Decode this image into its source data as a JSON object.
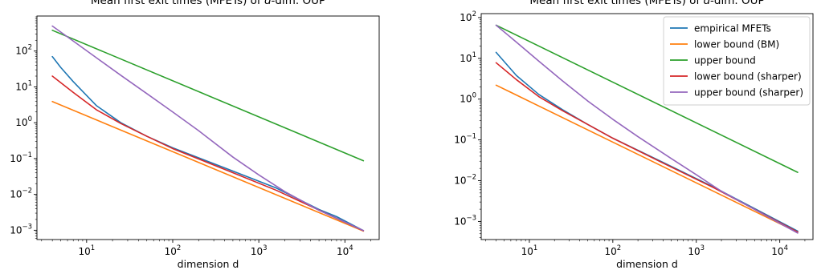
{
  "chart_data": [
    {
      "type": "line",
      "title_pre": "Mean first exit times (MFETs) of ",
      "title_italic": "d",
      "title_post": "-dim. OUP",
      "xlabel": "dimension d",
      "ylabel": "",
      "xscale": "log",
      "yscale": "log",
      "xlim": [
        2.65,
        25000
      ],
      "ylim": [
        0.00055,
        950
      ],
      "xticks": [
        {
          "value": 10,
          "base": "10",
          "exp": "1"
        },
        {
          "value": 100,
          "base": "10",
          "exp": "2"
        },
        {
          "value": 1000,
          "base": "10",
          "exp": "3"
        },
        {
          "value": 10000,
          "base": "10",
          "exp": "4"
        }
      ],
      "yticks": [
        {
          "value": 0.001,
          "base": "10",
          "exp": "−3"
        },
        {
          "value": 0.01,
          "base": "10",
          "exp": "−2"
        },
        {
          "value": 0.1,
          "base": "10",
          "exp": "−1"
        },
        {
          "value": 1,
          "base": "10",
          "exp": "0"
        },
        {
          "value": 10,
          "base": "10",
          "exp": "1"
        },
        {
          "value": 100,
          "base": "10",
          "exp": "2"
        }
      ],
      "grid": false,
      "legend": false,
      "series": [
        {
          "color": "#1f77b4",
          "x": [
            4,
            5,
            7,
            13,
            25,
            50,
            100,
            400,
            1600,
            5000,
            8000,
            16384
          ],
          "y": [
            70,
            35,
            14,
            3,
            1.0,
            0.42,
            0.2,
            0.055,
            0.015,
            0.0038,
            0.0024,
            0.00098
          ]
        },
        {
          "color": "#ff7f0e",
          "x": [
            4,
            16384
          ],
          "y": [
            3.9,
            0.00095
          ]
        },
        {
          "color": "#2ca02c",
          "x": [
            4,
            16384
          ],
          "y": [
            380,
            0.087
          ]
        },
        {
          "color": "#d62728",
          "x": [
            4,
            7,
            13,
            25,
            50,
            100,
            400,
            1600,
            16384
          ],
          "y": [
            20,
            7,
            2.3,
            0.95,
            0.42,
            0.19,
            0.05,
            0.013,
            0.00097
          ]
        },
        {
          "color": "#9467bd",
          "x": [
            4,
            7,
            13,
            25,
            50,
            100,
            200,
            500,
            1000,
            2000,
            5000,
            16384
          ],
          "y": [
            500,
            190,
            65,
            21,
            6.5,
            2.0,
            0.6,
            0.11,
            0.035,
            0.012,
            0.0036,
            0.00098
          ]
        }
      ]
    },
    {
      "type": "line",
      "title_pre": "Mean first exit times (MFETs) of ",
      "title_italic": "d",
      "title_post": "-dim. OUP",
      "xlabel": "dimension d",
      "ylabel": "",
      "xscale": "log",
      "yscale": "log",
      "xlim": [
        2.65,
        25000
      ],
      "ylim": [
        0.00036,
        125
      ],
      "xticks": [
        {
          "value": 10,
          "base": "10",
          "exp": "1"
        },
        {
          "value": 100,
          "base": "10",
          "exp": "2"
        },
        {
          "value": 1000,
          "base": "10",
          "exp": "3"
        },
        {
          "value": 10000,
          "base": "10",
          "exp": "4"
        }
      ],
      "yticks": [
        {
          "value": 0.001,
          "base": "10",
          "exp": "−3"
        },
        {
          "value": 0.01,
          "base": "10",
          "exp": "−2"
        },
        {
          "value": 0.1,
          "base": "10",
          "exp": "−1"
        },
        {
          "value": 1,
          "base": "10",
          "exp": "0"
        },
        {
          "value": 10,
          "base": "10",
          "exp": "1"
        },
        {
          "value": 100,
          "base": "10",
          "exp": "2"
        }
      ],
      "grid": false,
      "legend": true,
      "legend_loc": "upper right",
      "series": [
        {
          "name": "empirical MFETs",
          "color": "#1f77b4",
          "x": [
            4,
            7,
            13,
            25,
            50,
            100,
            400,
            1600,
            16384
          ],
          "y": [
            14,
            3.8,
            1.3,
            0.55,
            0.24,
            0.11,
            0.028,
            0.007,
            0.00058
          ]
        },
        {
          "name": "lower bound (BM)",
          "color": "#ff7f0e",
          "x": [
            4,
            16384
          ],
          "y": [
            2.2,
            0.00054
          ]
        },
        {
          "name": "upper bound",
          "color": "#2ca02c",
          "x": [
            4,
            16384
          ],
          "y": [
            65,
            0.016
          ]
        },
        {
          "name": "lower bound (sharper)",
          "color": "#d62728",
          "x": [
            4,
            7,
            13,
            25,
            50,
            100,
            400,
            1600,
            16384
          ],
          "y": [
            7.8,
            3.0,
            1.15,
            0.52,
            0.24,
            0.11,
            0.027,
            0.0068,
            0.00055
          ]
        },
        {
          "name": "upper bound (sharper)",
          "color": "#9467bd",
          "x": [
            4,
            7,
            13,
            25,
            50,
            100,
            200,
            500,
            1000,
            2000,
            16384
          ],
          "y": [
            65,
            25,
            8.5,
            2.8,
            0.9,
            0.32,
            0.12,
            0.035,
            0.014,
            0.0055,
            0.00052
          ]
        }
      ]
    }
  ]
}
